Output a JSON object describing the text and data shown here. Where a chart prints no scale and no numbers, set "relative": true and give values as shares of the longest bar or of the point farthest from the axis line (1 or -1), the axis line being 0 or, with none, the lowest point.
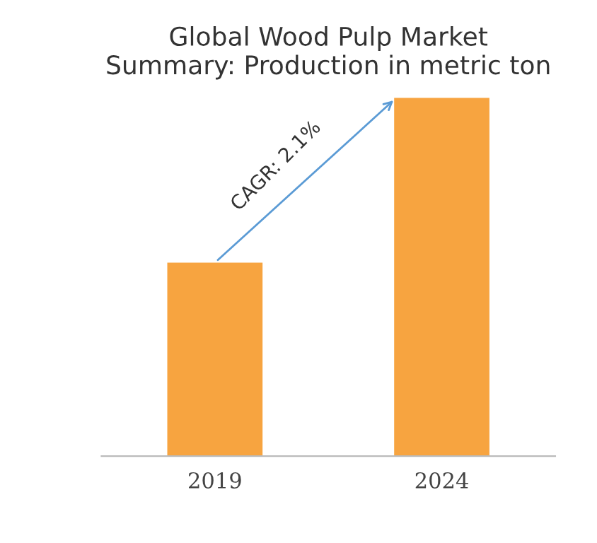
{
  "chart_data": {
    "type": "bar",
    "title": "Global Wood Pulp Market\nSummary: Production in metric ton",
    "categories": [
      "2019",
      "2024"
    ],
    "values": [
      0.54,
      1
    ],
    "color": "#f7a440",
    "relative": true,
    "annotations": [
      "CAGR: 2.1%"
    ]
  }
}
